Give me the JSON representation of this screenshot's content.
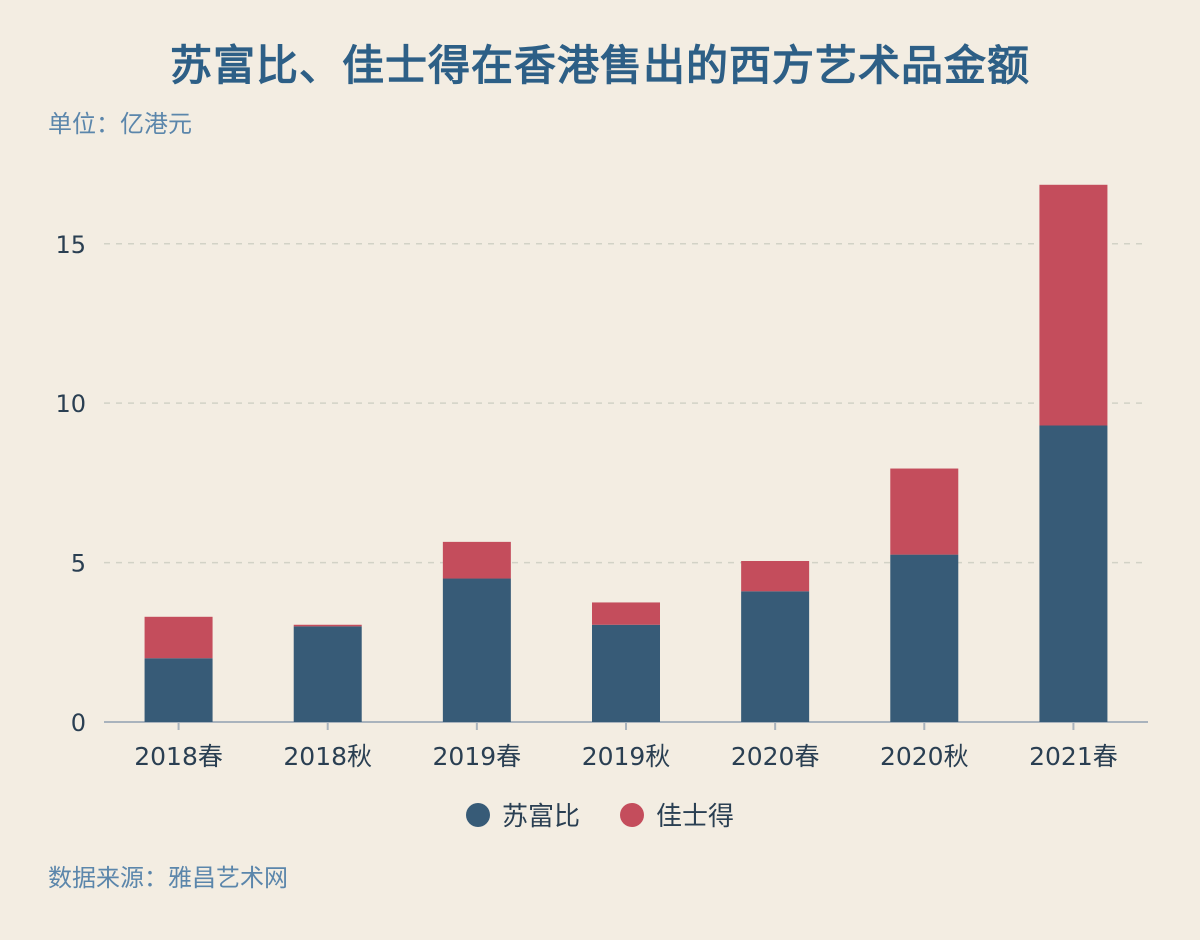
{
  "header": {
    "title": "苏富比、佳士得在香港售出的西方艺术品金额",
    "unit": "单位：亿港元"
  },
  "footer": {
    "source": "数据来源：雅昌艺术网"
  },
  "colors": {
    "background": "#f3ede2",
    "sothebys": "#375b77",
    "christies": "#c44d5c",
    "title": "#2d5f86"
  },
  "chart_data": {
    "type": "bar",
    "stacked": true,
    "categories": [
      "2018春",
      "2018秋",
      "2019春",
      "2019秋",
      "2020春",
      "2020秋",
      "2021春"
    ],
    "series": [
      {
        "name": "苏富比",
        "values": [
          2.0,
          3.0,
          4.5,
          3.05,
          4.1,
          5.25,
          9.3
        ]
      },
      {
        "name": "佳士得",
        "values": [
          1.3,
          0.05,
          1.15,
          0.7,
          0.95,
          2.7,
          7.55
        ]
      }
    ],
    "yticks": [
      0,
      5,
      10,
      15
    ],
    "ylim": [
      0,
      17
    ],
    "grid": true,
    "legend": "bottom-center"
  }
}
